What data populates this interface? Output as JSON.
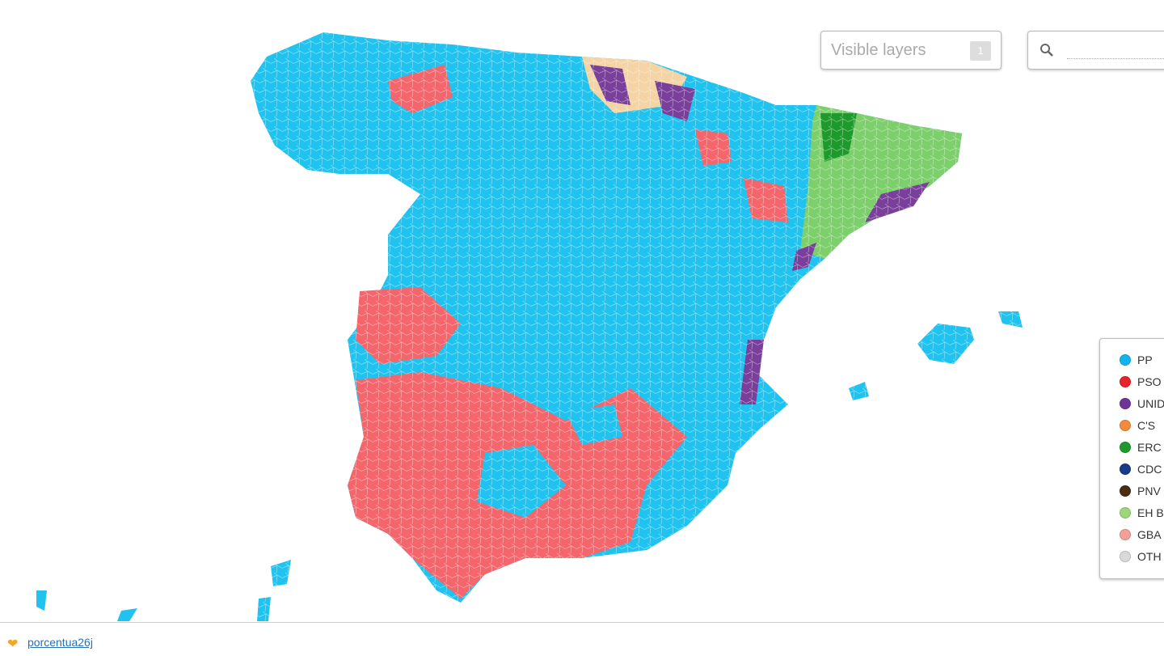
{
  "layers_button": {
    "label": "Visible layers",
    "count": "1"
  },
  "legend": [
    {
      "label": "PP",
      "color": "#12b4ec"
    },
    {
      "label": "PSO",
      "color": "#e8232a"
    },
    {
      "label": "UNID",
      "color": "#6f3596"
    },
    {
      "label": "C'S",
      "color": "#f28b3c"
    },
    {
      "label": "ERC",
      "color": "#1e9a2c"
    },
    {
      "label": "CDC",
      "color": "#173a8a"
    },
    {
      "label": "PNV",
      "color": "#4a2e12"
    },
    {
      "label": "EH B",
      "color": "#9ed67a"
    },
    {
      "label": "GBA",
      "color": "#f4a09a"
    },
    {
      "label": "OTH",
      "color": "#d9d9d9"
    }
  ],
  "footer": {
    "link": "porcentua26j"
  }
}
